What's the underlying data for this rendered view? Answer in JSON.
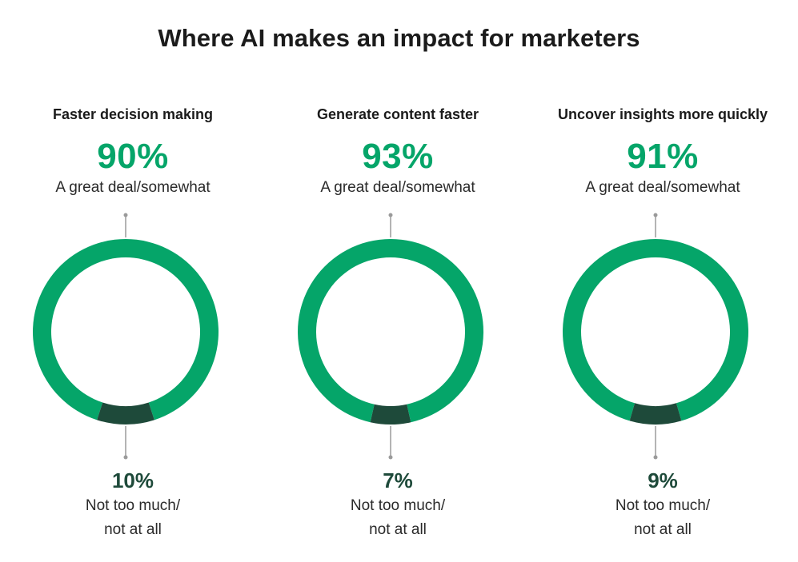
{
  "title": "Where AI makes an impact for marketers",
  "colors": {
    "positive": "#05a569",
    "negative": "#1e4a3a",
    "leader": "#9a9a9a"
  },
  "chart_data": [
    {
      "type": "pie",
      "title": "Faster decision making",
      "positive_label": "A great deal/somewhat",
      "negative_label_line1": "Not too much/",
      "negative_label_line2": "not at all",
      "positive_value": 90,
      "negative_value": 10,
      "positive_text": "90%",
      "negative_text": "10%"
    },
    {
      "type": "pie",
      "title": "Generate content faster",
      "positive_label": "A great deal/somewhat",
      "negative_label_line1": "Not too much/",
      "negative_label_line2": "not at all",
      "positive_value": 93,
      "negative_value": 7,
      "positive_text": "93%",
      "negative_text": "7%"
    },
    {
      "type": "pie",
      "title": "Uncover insights more quickly",
      "positive_label": "A great deal/somewhat",
      "negative_label_line1": "Not too much/",
      "negative_label_line2": "not at all",
      "positive_value": 91,
      "negative_value": 9,
      "positive_text": "91%",
      "negative_text": "9%"
    }
  ]
}
